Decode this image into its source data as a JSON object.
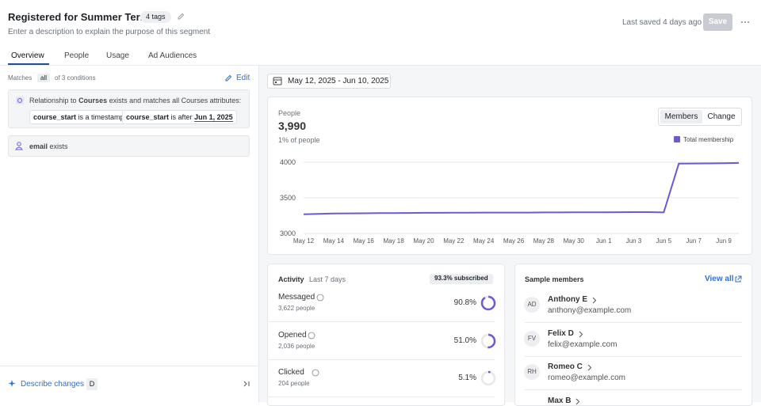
{
  "header": {
    "title": "Registered for Summer Term",
    "tags": "4 tags",
    "description": "Enter a description to explain the purpose of this segment",
    "saved": "Last saved 4 days ago",
    "save": "Save"
  },
  "tabs": [
    "Overview",
    "People",
    "Usage",
    "Ad Audiences"
  ],
  "conditions": {
    "prefix": "Matches",
    "mode": "all",
    "suffix": "of 3 conditions",
    "edit": "Edit",
    "relationship": {
      "before": "Relationship to",
      "object": "Courses",
      "after": "exists and matches all Courses attributes:",
      "chips": [
        {
          "attribute": "course_start",
          "operator": "is a timestamp"
        },
        {
          "attribute": "course_start",
          "operator": "is after",
          "value": "Jun 1, 2025"
        }
      ]
    },
    "attribute": {
      "name": "email",
      "operator": "exists"
    }
  },
  "footer": {
    "describe": "Describe changes",
    "shortcut": "D"
  },
  "date_range": "May 12, 2025 - Jun 10, 2025",
  "people_card": {
    "label": "People",
    "count": "3,990",
    "share": "1% of people",
    "toggle": [
      "Members",
      "Change"
    ]
  },
  "chart_data": {
    "type": "line",
    "categories": [
      "May 12",
      null,
      "May 14",
      null,
      "May 16",
      null,
      "May 18",
      null,
      "May 20",
      null,
      "May 22",
      null,
      "May 24",
      null,
      "May 26",
      null,
      "May 28",
      null,
      "May 30",
      null,
      "Jun 1",
      null,
      "Jun 3",
      null,
      "Jun 5",
      null,
      "Jun 7",
      null,
      "Jun 9",
      null
    ],
    "series": [
      {
        "name": "Total membership",
        "color": "#6b5bd2",
        "values": [
          3270,
          3275,
          3280,
          3282,
          3283,
          3285,
          3287,
          3288,
          3290,
          3290,
          3292,
          3292,
          3293,
          3293,
          3293,
          3293,
          3295,
          3296,
          3297,
          3298,
          3298,
          3299,
          3300,
          3300,
          3295,
          3980,
          3982,
          3983,
          3985,
          3990
        ]
      }
    ],
    "ylim": [
      3000,
      4000
    ],
    "yticks": [
      3000,
      3500,
      4000
    ],
    "grid": true,
    "legend": "top-right"
  },
  "activity": {
    "title": "Activity",
    "period": "Last 7 days",
    "badge": "93.3% subscribed",
    "color": "#6b5bd2",
    "rows": [
      {
        "label": "Messaged",
        "count": "3,622 people",
        "rate": {
          "value": 90.8,
          "label": "90.8%"
        }
      },
      {
        "label": "Opened",
        "count": "2,036 people",
        "rate": {
          "value": 51.0,
          "label": "51.0%"
        }
      },
      {
        "label": "Clicked",
        "count": "204 people",
        "rate": {
          "value": 5.1,
          "label": "5.1%"
        }
      }
    ]
  },
  "members": {
    "title": "Sample members",
    "view_all": "View all",
    "list": [
      {
        "initials": "AD",
        "name": "Anthony E",
        "email": "anthony@example.com"
      },
      {
        "initials": "FV",
        "name": "Felix D",
        "email": "felix@example.com"
      },
      {
        "initials": "RH",
        "name": "Romeo C",
        "email": "romeo@example.com"
      },
      {
        "name": "Max B"
      }
    ]
  }
}
